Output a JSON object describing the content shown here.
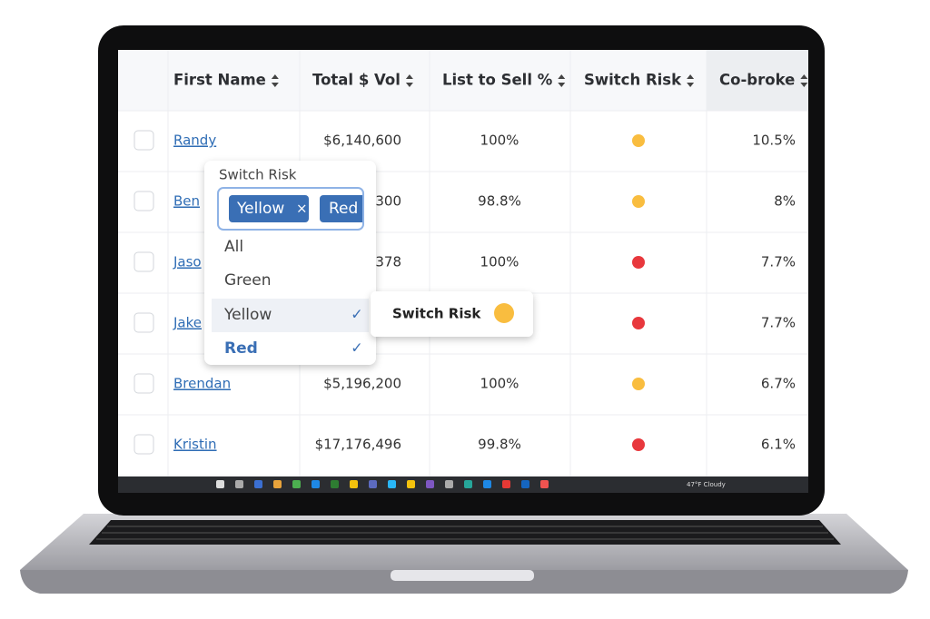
{
  "table": {
    "headers": [
      "First Name",
      "Total $ Vol",
      "List to Sell %",
      "Switch Risk",
      "Co-broke"
    ],
    "rows": [
      {
        "name": "Randy",
        "total": "$6,140,600",
        "list_to_sell": "100%",
        "risk_color": "#f9bd3f",
        "co_broke": "10.5%"
      },
      {
        "name": "Ben",
        "total": "300",
        "list_to_sell": "98.8%",
        "risk_color": "#f9bd3f",
        "co_broke": "8%"
      },
      {
        "name": "Jaso",
        "total": "378",
        "list_to_sell": "100%",
        "risk_color": "#e8383d",
        "co_broke": "7.7%"
      },
      {
        "name": "Jake",
        "risk_color": "#e8383d",
        "co_broke": "7.7%"
      },
      {
        "name": "Brendan",
        "total": "$5,196,200",
        "list_to_sell": "100%",
        "risk_color": "#f9bd3f",
        "co_broke": "6.7%"
      },
      {
        "name": "Kristin",
        "total": "$17,176,496",
        "list_to_sell": "99.8%",
        "risk_color": "#e8383d",
        "co_broke": "6.1%"
      }
    ]
  },
  "filter": {
    "label": "Switch Risk",
    "chips": [
      "Yellow",
      "Red"
    ],
    "chip_remove": "×",
    "options": [
      "All",
      "Green",
      "Yellow",
      "Red"
    ],
    "checked": [
      false,
      false,
      true,
      true
    ],
    "check_mark": "✓"
  },
  "tooltip": {
    "label": "Switch Risk",
    "color": "#f9bd3f"
  },
  "taskbar": {
    "weather": "47°F Cloudy"
  }
}
